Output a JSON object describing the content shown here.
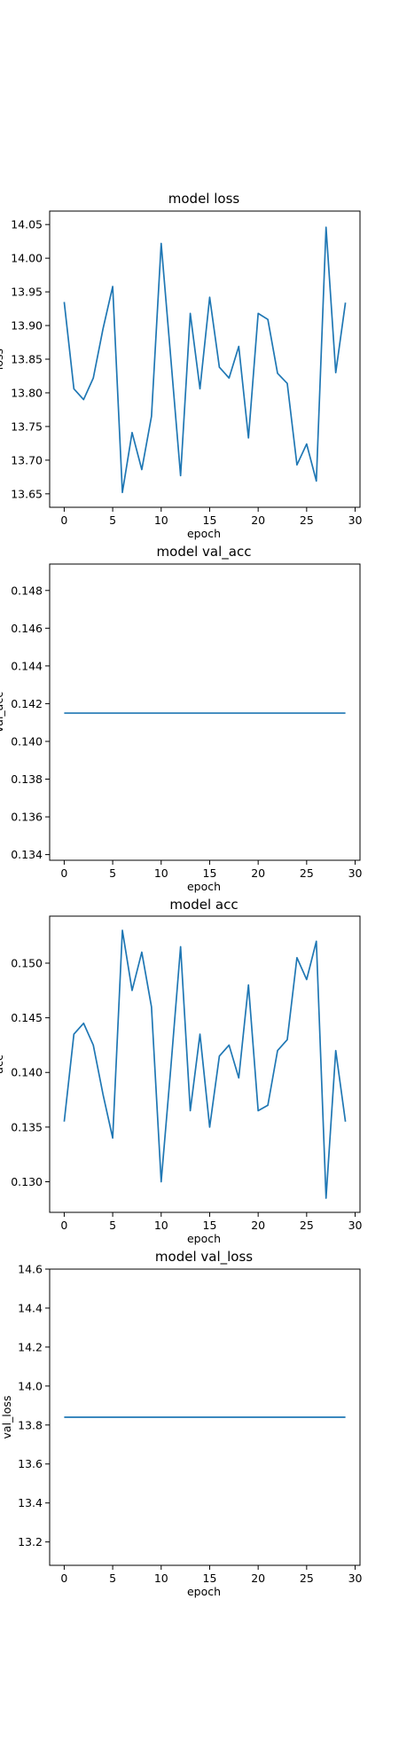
{
  "colors": {
    "line": "#1f77b4",
    "axes": "#000000",
    "background": "#ffffff"
  },
  "chart_data": [
    {
      "type": "line",
      "title": "model loss",
      "xlabel": "epoch",
      "ylabel": "loss",
      "grid": false,
      "xlim": [
        -1.5,
        30.5
      ],
      "ylim": [
        13.63,
        14.07
      ],
      "xticks": [
        0,
        5,
        10,
        15,
        20,
        25,
        30
      ],
      "yticks": [
        13.65,
        13.7,
        13.75,
        13.8,
        13.85,
        13.9,
        13.95,
        14.0,
        14.05
      ],
      "ytick_labels": [
        "13.65",
        "13.70",
        "13.75",
        "13.80",
        "13.85",
        "13.90",
        "13.95",
        "14.00",
        "14.05"
      ],
      "x": [
        0,
        1,
        2,
        3,
        4,
        5,
        6,
        7,
        8,
        9,
        10,
        11,
        12,
        13,
        14,
        15,
        16,
        17,
        18,
        19,
        20,
        21,
        22,
        23,
        24,
        25,
        26,
        27,
        28,
        29
      ],
      "series": [
        {
          "values": [
            13.935,
            13.806,
            13.79,
            13.822,
            13.895,
            13.958,
            13.652,
            13.741,
            13.686,
            13.765,
            14.022,
            13.85,
            13.677,
            13.918,
            13.806,
            13.942,
            13.838,
            13.822,
            13.869,
            13.733,
            13.918,
            13.909,
            13.829,
            13.814,
            13.693,
            13.724,
            13.669,
            14.046,
            13.83,
            13.934
          ]
        }
      ]
    },
    {
      "type": "line",
      "title": "model val_acc",
      "xlabel": "epoch",
      "ylabel": "val_acc",
      "grid": false,
      "xlim": [
        -1.5,
        30.5
      ],
      "ylim": [
        0.1337,
        0.1494
      ],
      "xticks": [
        0,
        5,
        10,
        15,
        20,
        25,
        30
      ],
      "yticks": [
        0.134,
        0.136,
        0.138,
        0.14,
        0.142,
        0.144,
        0.146,
        0.148
      ],
      "ytick_labels": [
        "0.134",
        "0.136",
        "0.138",
        "0.140",
        "0.142",
        "0.144",
        "0.146",
        "0.148"
      ],
      "x": [
        0,
        1,
        2,
        3,
        4,
        5,
        6,
        7,
        8,
        9,
        10,
        11,
        12,
        13,
        14,
        15,
        16,
        17,
        18,
        19,
        20,
        21,
        22,
        23,
        24,
        25,
        26,
        27,
        28,
        29
      ],
      "series": [
        {
          "values": [
            0.1415,
            0.1415,
            0.1415,
            0.1415,
            0.1415,
            0.1415,
            0.1415,
            0.1415,
            0.1415,
            0.1415,
            0.1415,
            0.1415,
            0.1415,
            0.1415,
            0.1415,
            0.1415,
            0.1415,
            0.1415,
            0.1415,
            0.1415,
            0.1415,
            0.1415,
            0.1415,
            0.1415,
            0.1415,
            0.1415,
            0.1415,
            0.1415,
            0.1415,
            0.1415
          ]
        }
      ]
    },
    {
      "type": "line",
      "title": "model acc",
      "xlabel": "epoch",
      "ylabel": "acc",
      "grid": false,
      "xlim": [
        -1.5,
        30.5
      ],
      "ylim": [
        0.1272,
        0.1543
      ],
      "xticks": [
        0,
        5,
        10,
        15,
        20,
        25,
        30
      ],
      "yticks": [
        0.13,
        0.135,
        0.14,
        0.145,
        0.15
      ],
      "ytick_labels": [
        "0.130",
        "0.135",
        "0.140",
        "0.145",
        "0.150"
      ],
      "x": [
        0,
        1,
        2,
        3,
        4,
        5,
        6,
        7,
        8,
        9,
        10,
        11,
        12,
        13,
        14,
        15,
        16,
        17,
        18,
        19,
        20,
        21,
        22,
        23,
        24,
        25,
        26,
        27,
        28,
        29
      ],
      "series": [
        {
          "values": [
            0.1355,
            0.1435,
            0.1445,
            0.1425,
            0.138,
            0.134,
            0.153,
            0.1475,
            0.151,
            0.146,
            0.13,
            0.1405,
            0.1515,
            0.1365,
            0.1435,
            0.135,
            0.1415,
            0.1425,
            0.1395,
            0.148,
            0.1365,
            0.137,
            0.142,
            0.143,
            0.1505,
            0.1485,
            0.152,
            0.1285,
            0.142,
            0.1355
          ]
        }
      ]
    },
    {
      "type": "line",
      "title": "model val_loss",
      "xlabel": "epoch",
      "ylabel": "val_loss",
      "grid": false,
      "xlim": [
        -1.5,
        30.5
      ],
      "ylim": [
        13.08,
        14.6
      ],
      "xticks": [
        0,
        5,
        10,
        15,
        20,
        25,
        30
      ],
      "yticks": [
        13.2,
        13.4,
        13.6,
        13.8,
        14.0,
        14.2,
        14.4,
        14.6
      ],
      "ytick_labels": [
        "13.2",
        "13.4",
        "13.6",
        "13.8",
        "14.0",
        "14.2",
        "14.4",
        "14.6"
      ],
      "x": [
        0,
        1,
        2,
        3,
        4,
        5,
        6,
        7,
        8,
        9,
        10,
        11,
        12,
        13,
        14,
        15,
        16,
        17,
        18,
        19,
        20,
        21,
        22,
        23,
        24,
        25,
        26,
        27,
        28,
        29
      ],
      "series": [
        {
          "values": [
            13.84,
            13.84,
            13.84,
            13.84,
            13.84,
            13.84,
            13.84,
            13.84,
            13.84,
            13.84,
            13.84,
            13.84,
            13.84,
            13.84,
            13.84,
            13.84,
            13.84,
            13.84,
            13.84,
            13.84,
            13.84,
            13.84,
            13.84,
            13.84,
            13.84,
            13.84,
            13.84,
            13.84,
            13.84,
            13.84
          ]
        }
      ]
    }
  ]
}
